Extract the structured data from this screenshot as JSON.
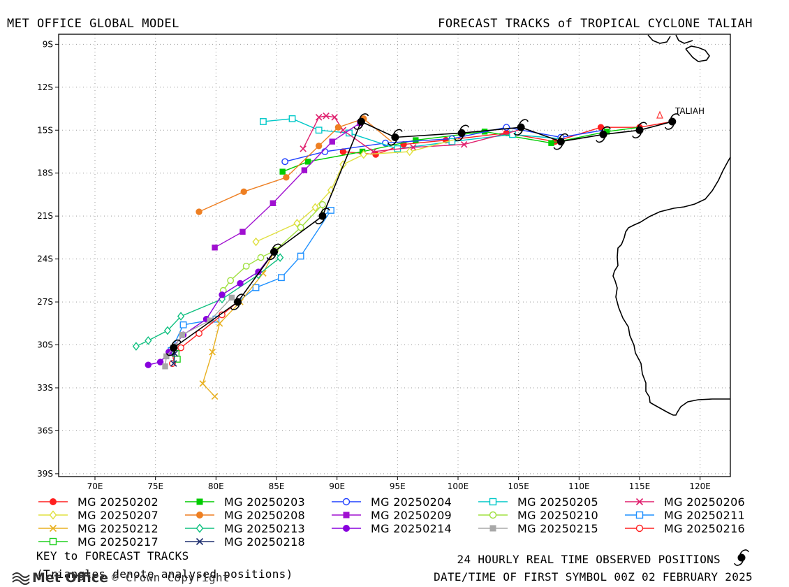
{
  "header": {
    "left_title": "MET OFFICE GLOBAL MODEL",
    "right_title": "FORECAST TRACKS of TROPICAL CYCLONE TALIAH"
  },
  "chart_data": {
    "type": "line",
    "title": "FORECAST TRACKS of TROPICAL CYCLONE TALIAH",
    "xlabel": "",
    "ylabel": "",
    "xlim": [
      67,
      122.5
    ],
    "ylim": [
      -39.2,
      -8.3
    ],
    "x_ticks": [
      "70E",
      "75E",
      "80E",
      "85E",
      "90E",
      "95E",
      "100E",
      "105E",
      "110E",
      "115E",
      "120E"
    ],
    "y_ticks": [
      "9S",
      "12S",
      "15S",
      "18S",
      "21S",
      "24S",
      "27S",
      "30S",
      "33S",
      "36S",
      "39S"
    ],
    "grid": true,
    "storm_label": "TALIAH",
    "observed": {
      "name": "24 HOURLY REAL TIME OBSERVED POSITIONS",
      "points": [
        [
          117.7,
          -14.4
        ],
        [
          115.0,
          -15.0
        ],
        [
          112.0,
          -15.3
        ],
        [
          108.5,
          -15.8
        ],
        [
          105.2,
          -14.8
        ],
        [
          100.3,
          -15.2
        ],
        [
          94.8,
          -15.5
        ],
        [
          92.0,
          -14.4
        ],
        [
          88.8,
          -21.0
        ],
        [
          84.8,
          -23.5
        ],
        [
          81.8,
          -27.0
        ],
        [
          76.5,
          -30.2
        ]
      ]
    },
    "series": [
      {
        "name": "MG 20250202",
        "color": "#ff2020",
        "marker": "circle-filled",
        "points": [
          [
            117.7,
            -14.4
          ],
          [
            115.0,
            -14.8
          ],
          [
            111.8,
            -14.8
          ],
          [
            108.0,
            -15.8
          ],
          [
            104.0,
            -15.2
          ],
          [
            99.0,
            -15.7
          ],
          [
            95.5,
            -16.0
          ],
          [
            93.2,
            -16.7
          ],
          [
            90.5,
            -16.5
          ]
        ]
      },
      {
        "name": "MG 20250203",
        "color": "#00cc00",
        "marker": "square-filled",
        "points": [
          [
            115.0,
            -14.8
          ],
          [
            112.3,
            -15.1
          ],
          [
            107.7,
            -15.9
          ],
          [
            102.2,
            -15.1
          ],
          [
            96.5,
            -15.7
          ],
          [
            92.1,
            -16.5
          ],
          [
            87.6,
            -17.2
          ],
          [
            85.5,
            -17.9
          ]
        ]
      },
      {
        "name": "MG 20250204",
        "color": "#2040ff",
        "marker": "circle-open",
        "points": [
          [
            112.0,
            -15.0
          ],
          [
            108.5,
            -15.5
          ],
          [
            104.0,
            -14.8
          ],
          [
            99.5,
            -15.6
          ],
          [
            94.0,
            -15.9
          ],
          [
            89.0,
            -16.5
          ],
          [
            85.7,
            -17.2
          ]
        ]
      },
      {
        "name": "MG 20250205",
        "color": "#00c8c8",
        "marker": "square-open",
        "points": [
          [
            108.5,
            -15.6
          ],
          [
            104.5,
            -15.3
          ],
          [
            99.5,
            -15.8
          ],
          [
            95.0,
            -16.3
          ],
          [
            91.0,
            -15.2
          ],
          [
            88.5,
            -15.0
          ],
          [
            86.3,
            -14.2
          ],
          [
            83.9,
            -14.4
          ]
        ]
      },
      {
        "name": "MG 20250206",
        "color": "#e0206e",
        "marker": "x",
        "points": [
          [
            105.0,
            -15.0
          ],
          [
            100.5,
            -16.0
          ],
          [
            96.3,
            -16.2
          ],
          [
            93.0,
            -16.5
          ],
          [
            90.5,
            -15.0
          ],
          [
            89.8,
            -14.1
          ],
          [
            89.1,
            -14.0
          ],
          [
            88.5,
            -14.1
          ],
          [
            87.2,
            -16.3
          ]
        ]
      },
      {
        "name": "MG 20250207",
        "color": "#e0e040",
        "marker": "diamond-open",
        "points": [
          [
            100.0,
            -15.6
          ],
          [
            96.0,
            -16.5
          ],
          [
            92.2,
            -16.7
          ],
          [
            90.5,
            -17.4
          ],
          [
            89.5,
            -19.2
          ],
          [
            88.2,
            -20.4
          ],
          [
            86.7,
            -21.5
          ],
          [
            83.3,
            -22.8
          ]
        ]
      },
      {
        "name": "MG 20250208",
        "color": "#ee7f22",
        "marker": "circle-filled",
        "points": [
          [
            94.5,
            -15.8
          ],
          [
            92.2,
            -14.2
          ],
          [
            90.1,
            -14.8
          ],
          [
            88.5,
            -16.1
          ],
          [
            85.8,
            -18.3
          ],
          [
            82.3,
            -19.3
          ],
          [
            78.6,
            -20.7
          ]
        ]
      },
      {
        "name": "MG 20250209",
        "color": "#a010d0",
        "marker": "square-filled",
        "points": [
          [
            92.0,
            -14.4
          ],
          [
            91.9,
            -14.5
          ],
          [
            89.6,
            -15.8
          ],
          [
            87.3,
            -17.8
          ],
          [
            84.7,
            -20.1
          ],
          [
            82.2,
            -22.1
          ],
          [
            79.9,
            -23.2
          ]
        ]
      },
      {
        "name": "MG 20250210",
        "color": "#a0e040",
        "marker": "circle-open",
        "points": [
          [
            88.8,
            -21.0
          ],
          [
            88.8,
            -20.2
          ],
          [
            87.0,
            -21.8
          ],
          [
            84.9,
            -23.4
          ],
          [
            83.7,
            -23.9
          ],
          [
            82.5,
            -24.5
          ],
          [
            81.2,
            -25.5
          ],
          [
            80.6,
            -26.2
          ]
        ]
      },
      {
        "name": "MG 20250211",
        "color": "#1e90ff",
        "marker": "square-open",
        "points": [
          [
            88.8,
            -21.0
          ],
          [
            89.5,
            -20.6
          ],
          [
            87.0,
            -23.8
          ],
          [
            85.4,
            -25.3
          ],
          [
            83.3,
            -26.0
          ],
          [
            80.0,
            -28.2
          ],
          [
            77.3,
            -28.6
          ],
          [
            76.3,
            -30.4
          ]
        ]
      },
      {
        "name": "MG 20250212",
        "color": "#e8b020",
        "marker": "x",
        "points": [
          [
            84.8,
            -23.5
          ],
          [
            83.9,
            -25.0
          ],
          [
            82.0,
            -27.0
          ],
          [
            80.3,
            -28.5
          ],
          [
            79.7,
            -30.5
          ],
          [
            78.9,
            -32.7
          ],
          [
            79.9,
            -33.6
          ]
        ]
      },
      {
        "name": "MG 20250213",
        "color": "#10c080",
        "marker": "diamond-open",
        "points": [
          [
            84.8,
            -23.5
          ],
          [
            85.3,
            -23.9
          ],
          [
            83.5,
            -25.1
          ],
          [
            80.5,
            -26.8
          ],
          [
            77.1,
            -28.0
          ],
          [
            76.0,
            -29.0
          ],
          [
            74.4,
            -29.7
          ],
          [
            73.4,
            -30.1
          ]
        ]
      },
      {
        "name": "MG 20250214",
        "color": "#8800dd",
        "marker": "circle-filled",
        "points": [
          [
            84.8,
            -23.5
          ],
          [
            83.5,
            -24.9
          ],
          [
            82.0,
            -25.7
          ],
          [
            80.5,
            -26.5
          ],
          [
            79.2,
            -28.2
          ],
          [
            77.3,
            -29.3
          ],
          [
            76.1,
            -30.5
          ],
          [
            75.4,
            -31.2
          ],
          [
            74.4,
            -31.4
          ]
        ]
      },
      {
        "name": "MG 20250215",
        "color": "#a8a8a8",
        "marker": "square-filled",
        "points": [
          [
            81.8,
            -27.0
          ],
          [
            81.3,
            -26.7
          ],
          [
            79.5,
            -28.3
          ],
          [
            77.2,
            -29.3
          ],
          [
            76.6,
            -30.1
          ],
          [
            75.9,
            -30.8
          ],
          [
            75.8,
            -31.5
          ]
        ]
      },
      {
        "name": "MG 20250216",
        "color": "#ff2020",
        "marker": "circle-open",
        "points": [
          [
            81.8,
            -27.0
          ],
          [
            80.5,
            -27.9
          ],
          [
            78.6,
            -29.2
          ],
          [
            77.1,
            -30.2
          ],
          [
            76.7,
            -30.9
          ],
          [
            76.4,
            -31.3
          ]
        ]
      },
      {
        "name": "MG 20250217",
        "color": "#20d020",
        "marker": "square-open",
        "points": [
          [
            76.5,
            -30.2
          ],
          [
            76.7,
            -30.6
          ],
          [
            76.8,
            -31.0
          ]
        ]
      },
      {
        "name": "MG 20250218",
        "color": "#203070",
        "marker": "x",
        "points": [
          [
            76.5,
            -30.2
          ],
          [
            76.6,
            -30.6
          ],
          [
            76.5,
            -31.3
          ]
        ]
      }
    ]
  },
  "legend": {
    "key_title": "KEY to FORECAST TRACKS",
    "note": "(Triangles denote analysed positions)"
  },
  "footer": {
    "observed_label": "24 HOURLY REAL TIME OBSERVED POSITIONS",
    "datetime_label": "DATE/TIME OF FIRST SYMBOL 00Z 02 FEBRUARY 2025",
    "logo_text": "Met Office",
    "copyright": "© Crown Copyright"
  },
  "colors": {
    "observed_marker": "#000000",
    "grid": "#999999",
    "coast": "#000000",
    "analysed_triangle": "#ff4040"
  }
}
